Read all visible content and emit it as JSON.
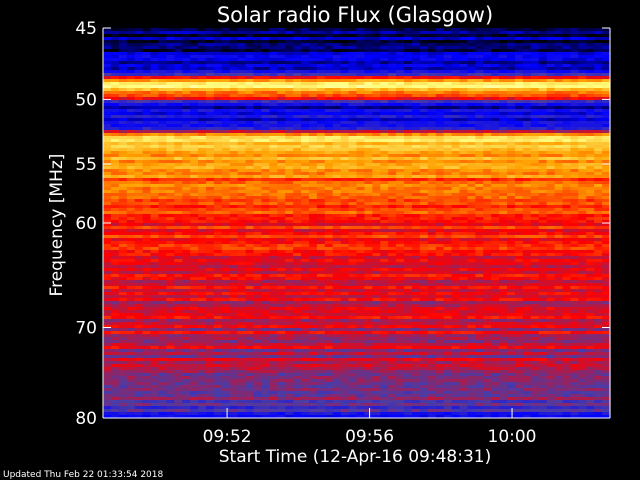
{
  "chart_data": {
    "type": "heatmap",
    "title": "Solar radio Flux (Glasgow)",
    "xlabel": "Start Time (12-Apr-16 09:48:31)",
    "ylabel": "Frequency [MHz]",
    "x_ticks": [
      "09:52",
      "09:56",
      "10:00"
    ],
    "y_ticks": [
      "45",
      "50",
      "55",
      "60",
      "70",
      "80"
    ],
    "x_range": [
      "09:48:31",
      "10:02:45"
    ],
    "y_range": [
      45,
      80
    ],
    "colormap": [
      "#000000",
      "#0000ff",
      "#4b3ca6",
      "#ff0000",
      "#ffa000",
      "#ffff80",
      "#ffffff"
    ],
    "intensity_by_frequency": [
      {
        "mhz": 45.0,
        "level": 0.05
      },
      {
        "mhz": 46.5,
        "level": 0.1
      },
      {
        "mhz": 48.0,
        "level": 0.15
      },
      {
        "mhz": 49.0,
        "level": 0.9
      },
      {
        "mhz": 50.5,
        "level": 0.15
      },
      {
        "mhz": 52.0,
        "level": 0.2
      },
      {
        "mhz": 53.0,
        "level": 0.8
      },
      {
        "mhz": 55.0,
        "level": 0.65
      },
      {
        "mhz": 58.0,
        "level": 0.55
      },
      {
        "mhz": 62.0,
        "level": 0.5
      },
      {
        "mhz": 66.0,
        "level": 0.48
      },
      {
        "mhz": 70.0,
        "level": 0.45
      },
      {
        "mhz": 75.0,
        "level": 0.42
      },
      {
        "mhz": 78.0,
        "level": 0.38
      },
      {
        "mhz": 80.0,
        "level": 0.2
      }
    ]
  },
  "footer": {
    "updated": "Updated Thu Feb 22 01:33:54 2018"
  }
}
